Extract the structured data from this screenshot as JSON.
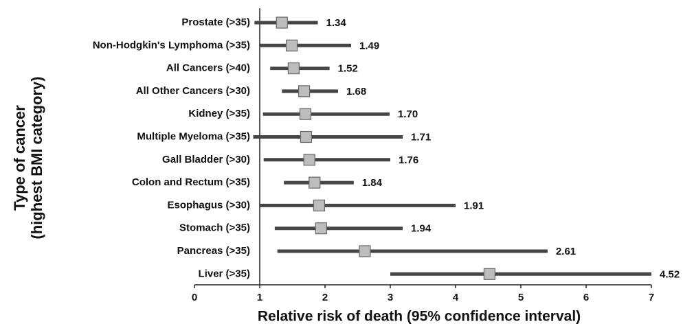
{
  "chart_data": {
    "type": "forest",
    "xlabel": "Relative risk of death (95% confidence interval)",
    "ylabel": [
      "Type of cancer",
      "(highest BMI category)"
    ],
    "categories": [
      "Prostate (>35)",
      "Non-Hodgkin's Lymphoma (>35)",
      "All Cancers (>40)",
      "All Other Cancers (>30)",
      "Kidney (>35)",
      "Multiple Myeloma (>35)",
      "Gall Bladder (>30)",
      "Colon and Rectum (>35)",
      "Esophagus (>30)",
      "Stomach (>35)",
      "Pancreas (>35)",
      "Liver (>35)"
    ],
    "values": [
      1.34,
      1.49,
      1.52,
      1.68,
      1.7,
      1.71,
      1.76,
      1.84,
      1.91,
      1.94,
      2.61,
      4.52
    ],
    "value_labels": [
      "1.34",
      "1.49",
      "1.52",
      "1.68",
      "1.70",
      "1.71",
      "1.76",
      "1.84",
      "1.91",
      "1.94",
      "2.61",
      "4.52"
    ],
    "ci_low": [
      0.92,
      1.0,
      1.16,
      1.34,
      1.05,
      0.9,
      1.06,
      1.37,
      1.0,
      1.23,
      1.27,
      3.0
    ],
    "ci_high": [
      1.89,
      2.4,
      2.07,
      2.2,
      2.99,
      3.19,
      3.0,
      2.44,
      4.0,
      3.19,
      5.41,
      7.0
    ],
    "line_color": "#454545",
    "marker_color": "#bdbdbd",
    "reference": 1,
    "xlim": [
      0,
      7
    ],
    "xticks": [
      0,
      1,
      2,
      3,
      4,
      5,
      6,
      7
    ]
  }
}
